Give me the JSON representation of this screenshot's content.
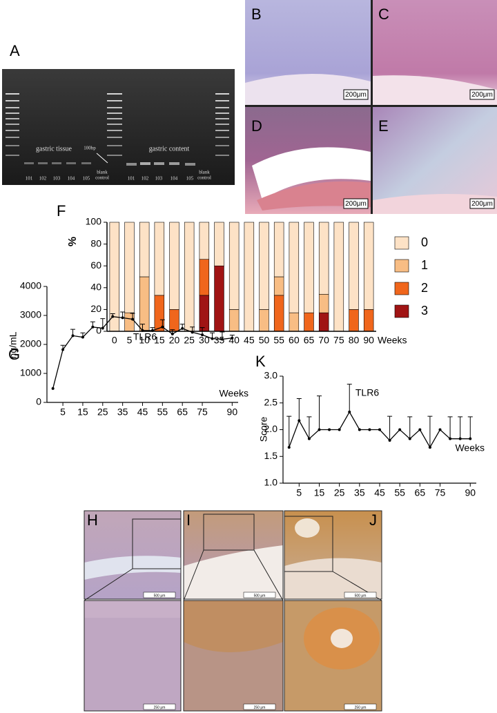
{
  "panel_labels": [
    "A",
    "B",
    "C",
    "D",
    "E",
    "F",
    "G",
    "K",
    "H",
    "I",
    "J"
  ],
  "gel": {
    "left_label": "gastric tissue",
    "right_label": "gastric content",
    "marker": "100bp",
    "lanes": [
      "101",
      "102",
      "103",
      "104",
      "105"
    ],
    "blank_control": [
      "blank",
      "control"
    ]
  },
  "scale_bars": {
    "he": "200μm",
    "ihc_overview": "500 μm",
    "ihc_zoom": "250 μm"
  },
  "chart_data": [
    {
      "type": "stacked_bar",
      "ylabel": "%",
      "xlabel": "Weeks",
      "categories": [
        "0",
        "5",
        "10",
        "15",
        "20",
        "25",
        "30",
        "35",
        "40",
        "45",
        "50",
        "55",
        "60",
        "65",
        "70",
        "75",
        "80",
        "90"
      ],
      "series": [
        {
          "name": "3",
          "color": "#a01414",
          "values": [
            0,
            0,
            0,
            0,
            0,
            0,
            33,
            60,
            0,
            0,
            0,
            0,
            0,
            0,
            17,
            0,
            0,
            0
          ]
        },
        {
          "name": "2",
          "color": "#f0661c",
          "values": [
            0,
            0,
            0,
            33,
            20,
            0,
            33,
            0,
            0,
            0,
            0,
            33,
            0,
            17,
            0,
            0,
            20,
            20
          ]
        },
        {
          "name": "1",
          "color": "#f8bd84",
          "values": [
            0,
            17,
            50,
            0,
            0,
            0,
            0,
            0,
            20,
            0,
            20,
            17,
            17,
            0,
            17,
            0,
            0,
            0
          ]
        },
        {
          "name": "0",
          "color": "#fde2c6",
          "values": [
            100,
            83,
            50,
            67,
            80,
            100,
            34,
            40,
            80,
            100,
            80,
            50,
            83,
            83,
            66,
            100,
            80,
            80
          ]
        }
      ],
      "legend_order": [
        "0",
        "1",
        "2",
        "3"
      ],
      "ylim": [
        0,
        100
      ],
      "yticks": [
        0,
        20,
        40,
        60,
        80,
        100
      ]
    },
    {
      "type": "line",
      "title": "TLR6",
      "ylabel": "ng/mL",
      "xlabel": "Weeks",
      "color": "#000000",
      "x": [
        0,
        5,
        10,
        15,
        20,
        25,
        30,
        35,
        40,
        45,
        50,
        55,
        60,
        65,
        70,
        75,
        80,
        85,
        90
      ],
      "values": [
        480,
        1820,
        2300,
        2250,
        2600,
        2560,
        2960,
        2920,
        2870,
        2480,
        2480,
        2600,
        2360,
        2550,
        2420,
        2330,
        2200,
        2180,
        2220
      ],
      "errors": [
        0,
        150,
        220,
        150,
        180,
        330,
        100,
        200,
        200,
        220,
        100,
        250,
        150,
        150,
        180,
        250,
        200,
        250,
        100
      ],
      "xlim": [
        -3,
        93
      ],
      "xticks": [
        5,
        15,
        25,
        35,
        45,
        55,
        65,
        75,
        90
      ],
      "ylim": [
        0,
        4000
      ],
      "yticks": [
        0,
        1000,
        2000,
        3000,
        4000
      ]
    },
    {
      "type": "line",
      "title": "TLR6",
      "ylabel": "Score",
      "xlabel": "Weeks",
      "color": "#000000",
      "x": [
        0,
        5,
        10,
        15,
        20,
        25,
        30,
        35,
        40,
        45,
        50,
        55,
        60,
        65,
        70,
        75,
        80,
        85,
        90
      ],
      "values": [
        1.67,
        2.17,
        1.83,
        2.0,
        2.0,
        2.0,
        2.33,
        2.0,
        2.0,
        2.0,
        1.8,
        2.0,
        1.83,
        2.0,
        1.67,
        2.0,
        1.83,
        1.83,
        1.83
      ],
      "errors": [
        0.58,
        0.41,
        0.41,
        0.63,
        0,
        0,
        0.52,
        0,
        0,
        0,
        0.45,
        0,
        0.41,
        0,
        0.58,
        0,
        0.41,
        0.41,
        0.41
      ],
      "xlim": [
        -3,
        93
      ],
      "xticks": [
        5,
        15,
        25,
        35,
        45,
        55,
        65,
        75,
        90
      ],
      "ylim": [
        1,
        3
      ],
      "yticks": [
        {
          "value": 1,
          "label": "1.0"
        },
        {
          "value": 1.5,
          "label": "1.5"
        },
        {
          "value": 2,
          "label": "2.0"
        },
        {
          "value": 2.5,
          "label": "2.5"
        },
        {
          "value": 3,
          "label": "3.0"
        }
      ]
    }
  ]
}
